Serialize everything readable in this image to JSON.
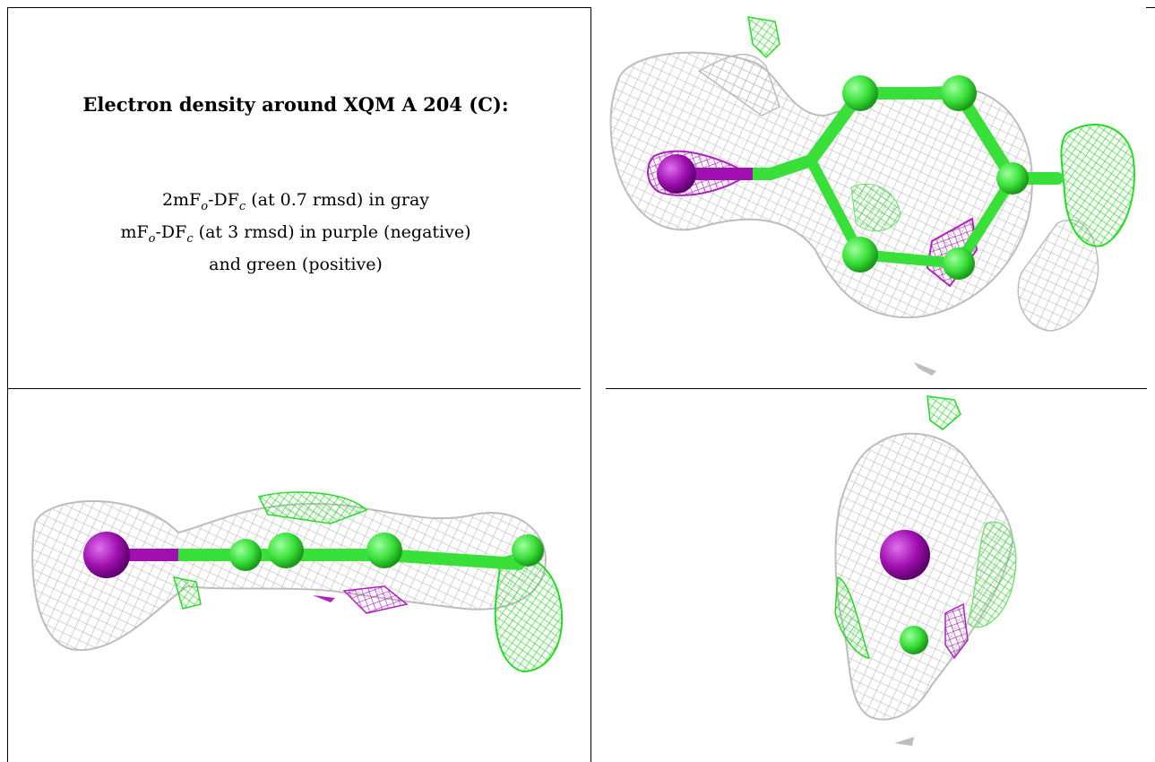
{
  "caption": {
    "title": "Electron density around XQM A 204 (C):",
    "line1_prefix": "2mF",
    "line1_sub1": "o",
    "line1_mid": "-DF",
    "line1_sub2": "c",
    "line1_suffix": " (at 0.7 rmsd) in gray",
    "line2_prefix": "mF",
    "line2_sub1": "o",
    "line2_mid": "-DF",
    "line2_sub2": "c",
    "line2_suffix": " (at 3 rmsd) in purple (negative)",
    "line3": "and green (positive)"
  },
  "colors": {
    "mesh_gray": "#bdbdbd",
    "positive_green": "#22dd22",
    "negative_purple": "#b020c0",
    "carbon_green": "#3ae03a",
    "heavy_atom_purple": "#a010b0"
  },
  "panels": [
    {
      "view": "top-right"
    },
    {
      "view": "bottom-left"
    },
    {
      "view": "bottom-right"
    }
  ]
}
